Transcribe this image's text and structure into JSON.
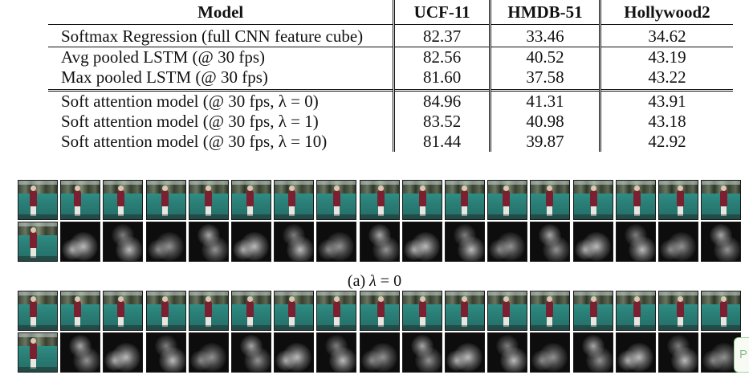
{
  "table": {
    "headers": [
      "Model",
      "UCF-11",
      "HMDB-51",
      "Hollywood2"
    ],
    "rows": [
      {
        "model": "Softmax Regression (full CNN feature cube)",
        "ucf": "82.37",
        "hmdb": "33.46",
        "holly": "34.62"
      },
      {
        "model": "Avg pooled LSTM (@ 30 fps)",
        "ucf": "82.56",
        "hmdb": "40.52",
        "holly": "43.19"
      },
      {
        "model": "Max pooled LSTM (@ 30 fps)",
        "ucf": "81.60",
        "hmdb": "37.58",
        "holly": "43.22"
      },
      {
        "model": "Soft attention model (@ 30 fps, λ = 0)",
        "ucf": "84.96",
        "hmdb": "41.31",
        "holly": "43.91"
      },
      {
        "model": "Soft attention model (@ 30 fps, λ = 1)",
        "ucf": "83.52",
        "hmdb": "40.98",
        "holly": "43.18"
      },
      {
        "model": "Soft attention model (@ 30 fps, λ = 10)",
        "ucf": "81.44",
        "hmdb": "39.87",
        "holly": "42.92"
      }
    ]
  },
  "caption_a": {
    "prefix": "(a) ",
    "symbol": "λ",
    "suffix": " = 0"
  },
  "corner_widget": {
    "glyph": "P"
  },
  "strip_frames": 17
}
